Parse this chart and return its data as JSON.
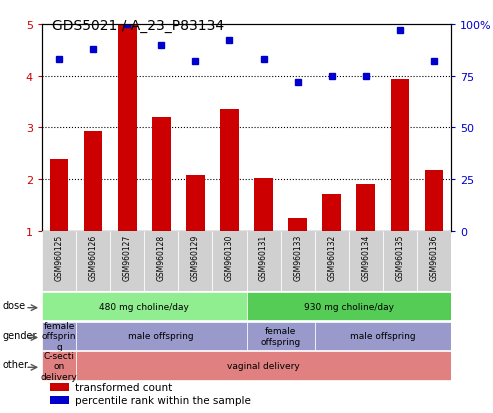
{
  "title": "GDS5021 / A_23_P83134",
  "samples": [
    "GSM960125",
    "GSM960126",
    "GSM960127",
    "GSM960128",
    "GSM960129",
    "GSM960130",
    "GSM960131",
    "GSM960133",
    "GSM960132",
    "GSM960134",
    "GSM960135",
    "GSM960136"
  ],
  "bar_values": [
    2.38,
    2.92,
    4.97,
    3.2,
    2.07,
    3.35,
    2.02,
    1.25,
    1.72,
    1.9,
    3.93,
    2.17
  ],
  "dot_values": [
    83,
    88,
    100,
    90,
    82,
    92,
    83,
    72,
    75,
    75,
    97,
    82
  ],
  "ylim_left": [
    1,
    5
  ],
  "ylim_right": [
    0,
    100
  ],
  "yticks_left": [
    1,
    2,
    3,
    4,
    5
  ],
  "yticks_right": [
    0,
    25,
    50,
    75,
    100
  ],
  "bar_color": "#cc0000",
  "dot_color": "#0000cc",
  "dose_labels": [
    {
      "text": "480 mg choline/day",
      "start": 0,
      "end": 6,
      "color": "#90ee90"
    },
    {
      "text": "930 mg choline/day",
      "start": 6,
      "end": 12,
      "color": "#55cc55"
    }
  ],
  "gender_labels": [
    {
      "text": "female\noffsprin\ng",
      "start": 0,
      "end": 1,
      "color": "#9999cc"
    },
    {
      "text": "male offspring",
      "start": 1,
      "end": 6,
      "color": "#9999cc"
    },
    {
      "text": "female\noffspring",
      "start": 6,
      "end": 8,
      "color": "#9999cc"
    },
    {
      "text": "male offspring",
      "start": 8,
      "end": 12,
      "color": "#9999cc"
    }
  ],
  "other_labels": [
    {
      "text": "C-secti\non\ndelivery",
      "start": 0,
      "end": 1,
      "color": "#e08080"
    },
    {
      "text": "vaginal delivery",
      "start": 1,
      "end": 12,
      "color": "#e08080"
    }
  ],
  "row_label_names": [
    "dose",
    "gender",
    "other"
  ],
  "legend_items": [
    {
      "color": "#cc0000",
      "label": "transformed count"
    },
    {
      "color": "#0000cc",
      "label": "percentile rank within the sample"
    }
  ],
  "xtick_bg": "#d0d0d0"
}
